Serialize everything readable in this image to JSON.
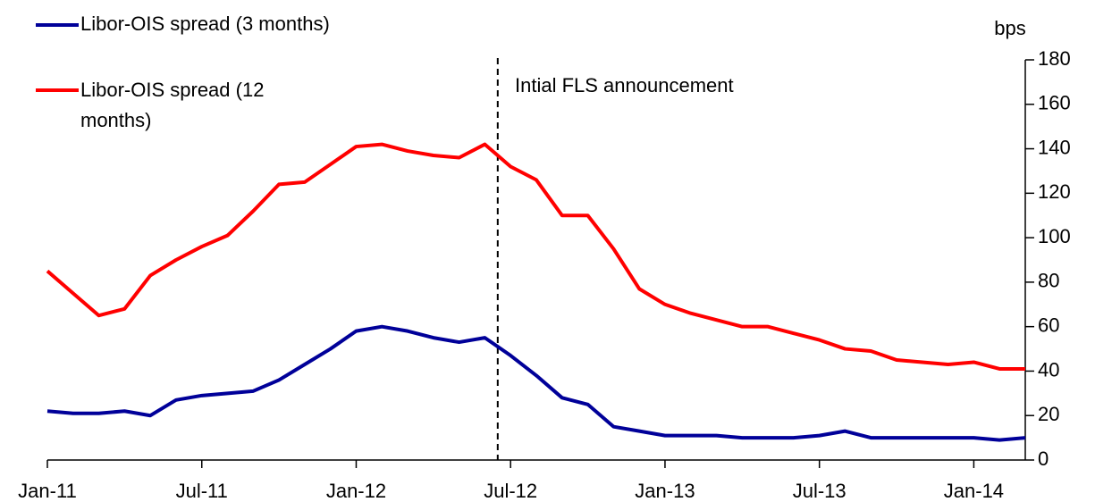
{
  "chart_data": {
    "type": "line",
    "annotation": "Intial FLS announcement",
    "event_x": "2012-06",
    "y_unit": "bps",
    "x": [
      "2011-01",
      "2011-02",
      "2011-03",
      "2011-04",
      "2011-05",
      "2011-06",
      "2011-07",
      "2011-08",
      "2011-09",
      "2011-10",
      "2011-11",
      "2011-12",
      "2012-01",
      "2012-02",
      "2012-03",
      "2012-04",
      "2012-05",
      "2012-06",
      "2012-07",
      "2012-08",
      "2012-09",
      "2012-10",
      "2012-11",
      "2012-12",
      "2013-01",
      "2013-02",
      "2013-03",
      "2013-04",
      "2013-05",
      "2013-06",
      "2013-07",
      "2013-08",
      "2013-09",
      "2013-10",
      "2013-11",
      "2013-12",
      "2014-01",
      "2014-02",
      "2014-03"
    ],
    "series": [
      {
        "name": "Libor-OIS spread (3 months)",
        "color": "#000099",
        "values": [
          22,
          21,
          21,
          22,
          20,
          27,
          29,
          30,
          31,
          36,
          43,
          50,
          58,
          60,
          58,
          55,
          53,
          55,
          47,
          38,
          28,
          25,
          15,
          13,
          11,
          11,
          11,
          10,
          10,
          10,
          11,
          13,
          10,
          10,
          10,
          10,
          10,
          9,
          10
        ]
      },
      {
        "name": "Libor-OIS spread (12 months)",
        "color": "#ff0000",
        "values": [
          85,
          75,
          65,
          68,
          83,
          90,
          96,
          101,
          112,
          124,
          125,
          133,
          141,
          142,
          139,
          137,
          136,
          142,
          132,
          126,
          110,
          110,
          95,
          77,
          70,
          66,
          63,
          60,
          60,
          57,
          54,
          50,
          49,
          45,
          44,
          43,
          44,
          41,
          41
        ]
      }
    ],
    "xlim": [
      "2011-01",
      "2014-03"
    ],
    "xticks": [
      {
        "value": "2011-01",
        "label": "Jan-11"
      },
      {
        "value": "2011-07",
        "label": "Jul-11"
      },
      {
        "value": "2012-01",
        "label": "Jan-12"
      },
      {
        "value": "2012-07",
        "label": "Jul-12"
      },
      {
        "value": "2013-01",
        "label": "Jan-13"
      },
      {
        "value": "2013-07",
        "label": "Jul-13"
      },
      {
        "value": "2014-01",
        "label": "Jan-14"
      }
    ],
    "ylim": [
      0,
      180
    ],
    "yticks": [
      0,
      20,
      40,
      60,
      80,
      100,
      120,
      140,
      160,
      180
    ],
    "y_axis_side": "right"
  }
}
